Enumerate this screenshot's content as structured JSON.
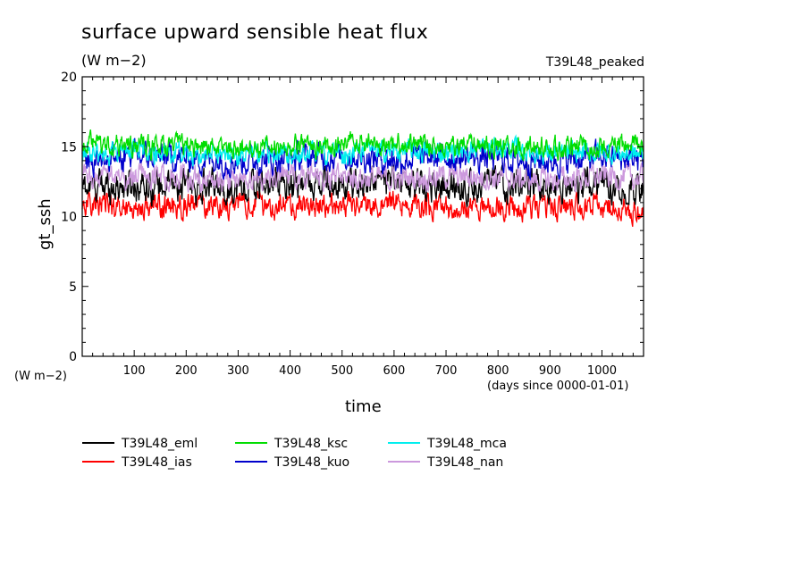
{
  "header": {
    "title": "surface upward sensible heat flux",
    "subtitle": "(W m−2)",
    "run_name": "T39L48_peaked",
    "y_unit": "(W m−2)",
    "x_unit": "(days since 0000-01-01)"
  },
  "chart_data": {
    "type": "line",
    "title": "surface upward sensible heat flux",
    "subtitle": "(W m−2)",
    "xlabel": "time",
    "ylabel": "gt_ssh",
    "x_units": "days since 0000-01-01",
    "xlim": [
      0,
      1080
    ],
    "ylim": [
      0,
      20
    ],
    "x_ticks": [
      100,
      200,
      300,
      400,
      500,
      600,
      700,
      800,
      900,
      1000
    ],
    "y_ticks": [
      0,
      5,
      10,
      15,
      20
    ],
    "grid": false,
    "legend_position": "bottom",
    "series": [
      {
        "name": "T39L48_eml",
        "color": "#000000",
        "mean": 12.2,
        "amplitude": 0.9,
        "x": [
          0,
          100,
          200,
          300,
          400,
          500,
          600,
          700,
          800,
          900,
          1000,
          1080
        ],
        "values": [
          12.1,
          12.3,
          12.2,
          12.0,
          12.4,
          12.3,
          12.5,
          12.1,
          12.3,
          12.2,
          12.4,
          12.0
        ]
      },
      {
        "name": "T39L48_ias",
        "color": "#ff0000",
        "mean": 10.8,
        "amplitude": 0.7,
        "x": [
          0,
          100,
          200,
          300,
          400,
          500,
          600,
          700,
          800,
          900,
          1000,
          1080
        ],
        "values": [
          11.0,
          10.6,
          10.8,
          10.9,
          10.7,
          10.8,
          10.9,
          10.6,
          10.8,
          10.5,
          10.9,
          10.2
        ]
      },
      {
        "name": "T39L48_ksc",
        "color": "#00dd00",
        "mean": 15.0,
        "amplitude": 0.6,
        "x": [
          0,
          100,
          200,
          300,
          400,
          500,
          600,
          700,
          800,
          900,
          1000,
          1080
        ],
        "values": [
          15.2,
          15.0,
          15.1,
          14.9,
          15.0,
          15.2,
          15.3,
          15.0,
          15.1,
          14.9,
          15.0,
          15.1
        ]
      },
      {
        "name": "T39L48_kuo",
        "color": "#0000cc",
        "mean": 14.2,
        "amplitude": 0.8,
        "x": [
          0,
          100,
          200,
          300,
          400,
          500,
          600,
          700,
          800,
          900,
          1000,
          1080
        ],
        "values": [
          14.1,
          14.3,
          14.2,
          14.0,
          14.2,
          14.4,
          14.1,
          14.3,
          14.2,
          14.0,
          14.3,
          14.1
        ]
      },
      {
        "name": "T39L48_mca",
        "color": "#00eeee",
        "mean": 14.6,
        "amplitude": 0.6,
        "x": [
          0,
          100,
          200,
          300,
          400,
          500,
          600,
          700,
          800,
          900,
          1000,
          1080
        ],
        "values": [
          14.5,
          14.7,
          14.6,
          14.4,
          14.6,
          14.5,
          14.7,
          14.6,
          15.0,
          14.5,
          14.6,
          14.4
        ]
      },
      {
        "name": "T39L48_nan",
        "color": "#cc99dd",
        "mean": 12.8,
        "amplitude": 0.7,
        "x": [
          0,
          100,
          200,
          300,
          400,
          500,
          600,
          700,
          800,
          900,
          1000,
          1080
        ],
        "values": [
          12.7,
          12.9,
          12.8,
          12.6,
          12.9,
          12.8,
          12.7,
          12.9,
          12.8,
          12.6,
          12.9,
          12.7
        ]
      }
    ]
  },
  "legend": {
    "rows": [
      [
        "T39L48_eml",
        "T39L48_ksc",
        "T39L48_mca"
      ],
      [
        "T39L48_ias",
        "T39L48_kuo",
        "T39L48_nan"
      ]
    ]
  }
}
